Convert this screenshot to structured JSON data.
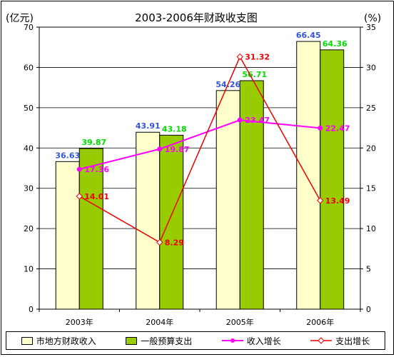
{
  "chart_data": {
    "type": "bar",
    "title": "2003-2006年财政收支图",
    "ylabel": "(亿元)",
    "y2label": "(%)",
    "categories": [
      "2003年",
      "2004年",
      "2005年",
      "2006年"
    ],
    "ylim": [
      0,
      70
    ],
    "y2lim": [
      0,
      35
    ],
    "yticks": [
      0,
      10,
      20,
      30,
      40,
      50,
      60,
      70
    ],
    "y2ticks": [
      0,
      5,
      10,
      15,
      20,
      25,
      30,
      35
    ],
    "series": [
      {
        "name": "市地方财政收入",
        "kind": "bar",
        "axis": "left",
        "values": [
          36.63,
          43.91,
          54.26,
          66.45
        ],
        "labels": [
          "36.63",
          "43.91",
          "54.26",
          "66.45"
        ],
        "color": "#ffffcc",
        "label_color": "#3355dd"
      },
      {
        "name": "一般预算支出",
        "kind": "bar",
        "axis": "left",
        "values": [
          39.87,
          43.18,
          56.71,
          64.36
        ],
        "labels": [
          "39.87",
          "43.18",
          "56.71",
          "64.36"
        ],
        "color": "#99cc00",
        "label_color": "#00dd00"
      },
      {
        "name": "收入增长",
        "kind": "line",
        "axis": "right",
        "values": [
          17.36,
          19.87,
          23.47,
          22.47
        ],
        "labels": [
          "17.36",
          "19.87",
          "23.47",
          "22.47"
        ],
        "color": "#ff00ff",
        "marker": "circle"
      },
      {
        "name": "支出增长",
        "kind": "line",
        "axis": "right",
        "values": [
          14.01,
          8.29,
          31.32,
          13.49
        ],
        "labels": [
          "14.01",
          "8.29",
          "31.32",
          "13.49"
        ],
        "color": "#ee0000",
        "marker": "diamond"
      }
    ],
    "grid": true,
    "legend": "bottom"
  }
}
